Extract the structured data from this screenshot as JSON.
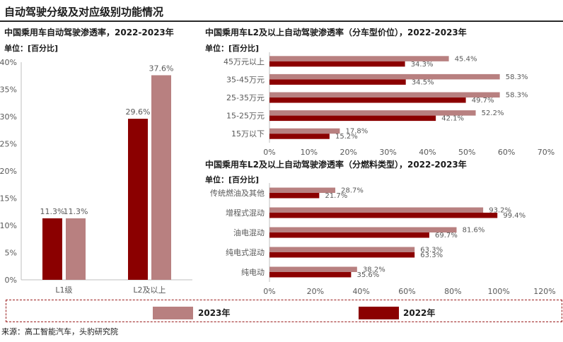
{
  "page_title": "自动驾驶分级及对应级别功能情况",
  "colors": {
    "y2023": "#b88080",
    "y2022": "#8b0000",
    "axis": "#bfbfbf",
    "tick_text": "#595959"
  },
  "legend": {
    "y2023": "2023年",
    "y2022": "2022年"
  },
  "source": "来源：高工智能汽车，头豹研究院",
  "chart_data": [
    {
      "type": "bar",
      "title": "中国乘用车自动驾驶渗透率，2022-2023年",
      "unit": "单位：[百分比]",
      "categories": [
        "L1级",
        "L2及以上"
      ],
      "series": [
        {
          "name": "2022年",
          "values": [
            11.3,
            29.6
          ]
        },
        {
          "name": "2023年",
          "values": [
            11.3,
            37.6
          ]
        }
      ],
      "ylim": [
        0,
        40
      ],
      "yticks": [
        "0%",
        "5%",
        "10%",
        "15%",
        "20%",
        "25%",
        "30%",
        "35%",
        "40%"
      ],
      "data_labels": [
        [
          "11.3%",
          "29.6%"
        ],
        [
          "11.3%",
          "37.6%"
        ]
      ]
    },
    {
      "type": "bar",
      "orientation": "horizontal",
      "title": "中国乘用车L2及以上自动驾驶渗透率（分车型价位），2022-2023年",
      "unit": "单位：[百分比]",
      "categories": [
        "45万元以上",
        "35-45万元",
        "25-35万元",
        "15-25万元",
        "15万以下"
      ],
      "series": [
        {
          "name": "2023年",
          "values": [
            45.4,
            58.3,
            58.3,
            52.2,
            17.8
          ]
        },
        {
          "name": "2022年",
          "values": [
            34.3,
            34.5,
            49.7,
            42.1,
            15.2
          ]
        }
      ],
      "xlim": [
        0,
        70
      ],
      "xticks": [
        "0%",
        "10%",
        "20%",
        "30%",
        "40%",
        "50%",
        "60%",
        "70%"
      ],
      "data_labels": [
        [
          "45.4%",
          "58.3%",
          "58.3%",
          "52.2%",
          "17.8%"
        ],
        [
          "34.3%",
          "34.5%",
          "49.7%",
          "42.1%",
          "15.2%"
        ]
      ]
    },
    {
      "type": "bar",
      "orientation": "horizontal",
      "title": "中国乘用车L2及以上自动驾驶渗透率（分燃料类型），2022-2023年",
      "unit": "单位：[百分比]",
      "categories": [
        "传统燃油及其他",
        "增程式混动",
        "油电混动",
        "纯电式混动",
        "纯电动"
      ],
      "series": [
        {
          "name": "2023年",
          "values": [
            28.7,
            93.2,
            81.6,
            63.3,
            38.2
          ]
        },
        {
          "name": "2022年",
          "values": [
            21.7,
            99.4,
            69.7,
            63.3,
            35.6
          ]
        }
      ],
      "xlim": [
        0,
        120
      ],
      "xticks": [
        "0%",
        "20%",
        "40%",
        "60%",
        "80%",
        "100%",
        "120%"
      ],
      "data_labels": [
        [
          "28.7%",
          "93.2%",
          "81.6%",
          "63.3%",
          "38.2%"
        ],
        [
          "21.7%",
          "99.4%",
          "69.7%",
          "63.3%",
          "35.6%"
        ]
      ]
    }
  ]
}
